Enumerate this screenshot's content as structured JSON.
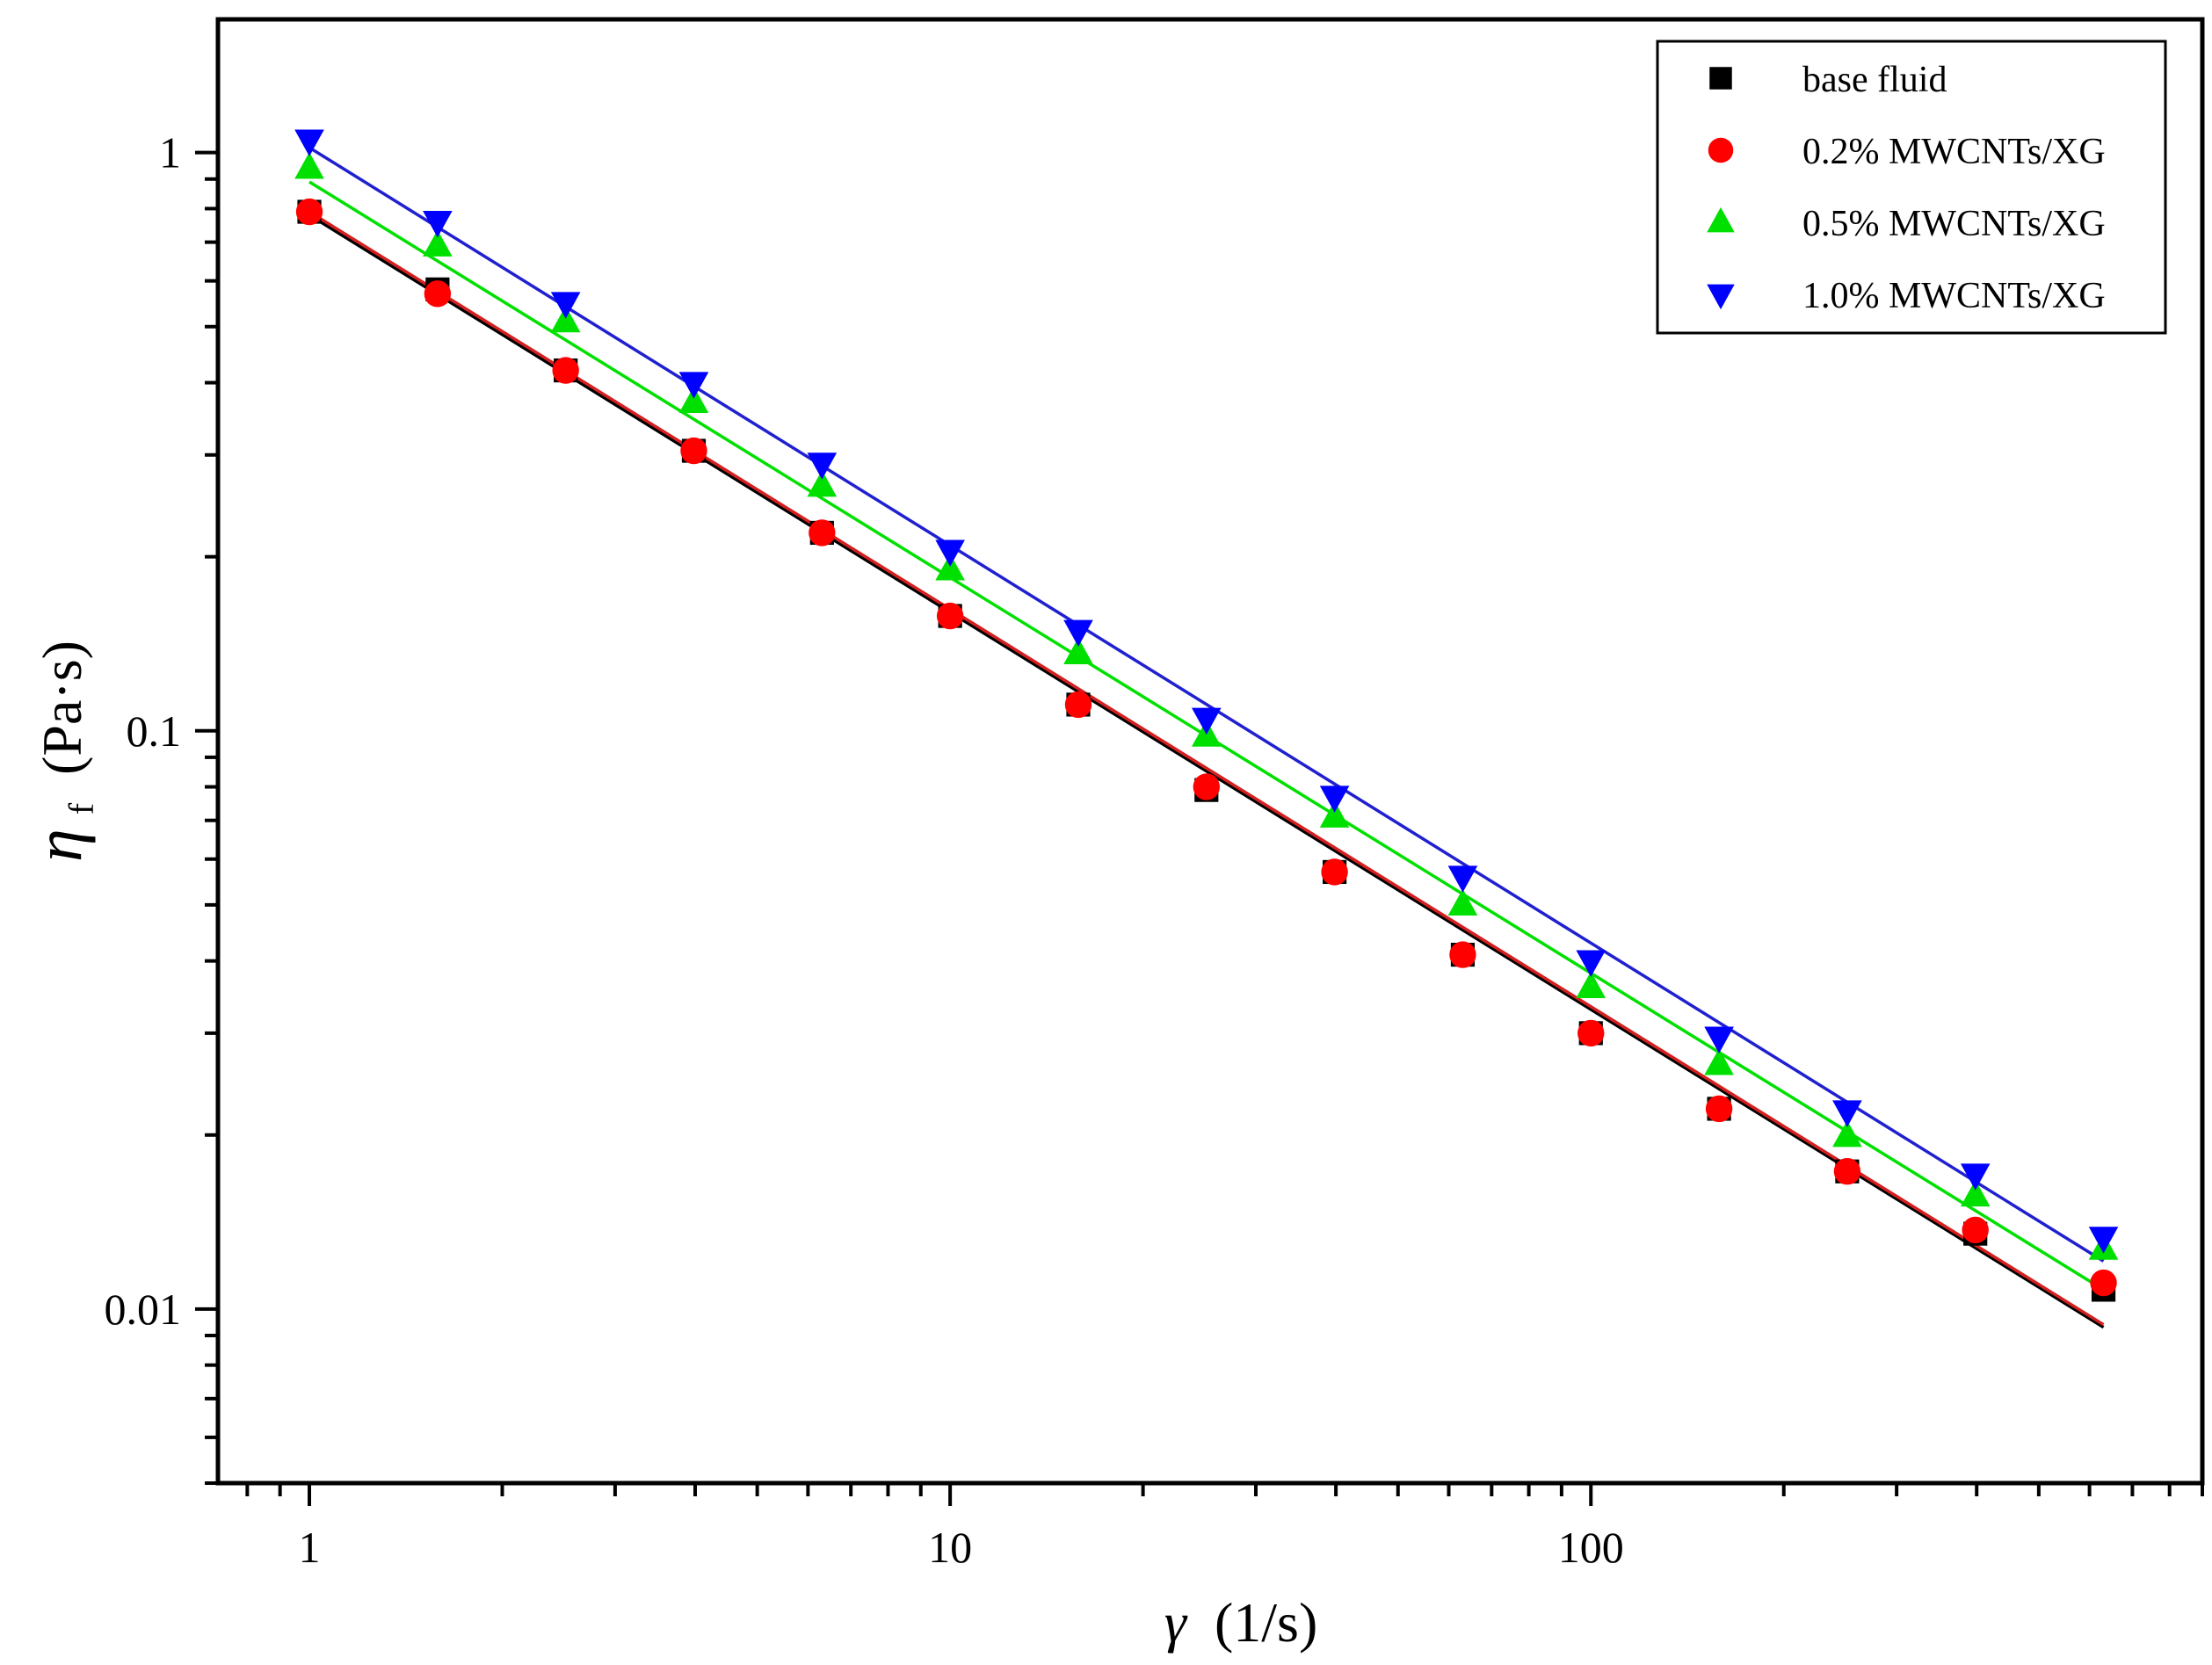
{
  "chart_data": {
    "type": "scatter",
    "x_scale": "log",
    "y_scale": "log",
    "xlabel": "γ (1/s)",
    "ylabel": "η (Pa·s)",
    "ylabel_symbol": "η",
    "ylabel_subscript": "f",
    "ylabel_unit": "(Pa·s)",
    "xlabel_symbol": "γ",
    "xlabel_unit": "(1/s)",
    "xlim": [
      0.72,
      900
    ],
    "ylim": [
      0.005,
      1.7
    ],
    "x_major_ticks": [
      1,
      10,
      100
    ],
    "x_tick_labels": [
      "1",
      "10",
      "100"
    ],
    "y_major_ticks": [
      0.01,
      0.1,
      1
    ],
    "y_tick_labels": [
      "0.01",
      "0.1",
      "1"
    ],
    "legend_position": "top-right",
    "x": [
      1,
      1.585,
      2.512,
      3.981,
      6.31,
      10,
      15.85,
      25.12,
      39.81,
      63.1,
      100,
      158.5,
      251.2,
      398.1,
      631
    ],
    "series": [
      {
        "name": "base fluid",
        "marker": "square",
        "color": "#000000",
        "values": [
          0.79,
          0.58,
          0.42,
          0.305,
          0.22,
          0.158,
          0.111,
          0.079,
          0.057,
          0.041,
          0.03,
          0.0222,
          0.0173,
          0.0135,
          0.0108
        ],
        "fit": {
          "color": "#000000",
          "y_start": 0.78,
          "y_end": 0.0093
        }
      },
      {
        "name": "0.2% MWCNTs/XG",
        "marker": "circle",
        "color": "#ff0000",
        "values": [
          0.79,
          0.57,
          0.42,
          0.305,
          0.22,
          0.158,
          0.111,
          0.08,
          0.057,
          0.041,
          0.03,
          0.0222,
          0.0173,
          0.0137,
          0.0111
        ],
        "fit": {
          "color": "#d42020",
          "y_start": 0.79,
          "y_end": 0.0094
        }
      },
      {
        "name": "0.5% MWCNTs/XG",
        "marker": "triangle-up",
        "color": "#00e000",
        "values": [
          0.94,
          0.69,
          0.51,
          0.37,
          0.265,
          0.19,
          0.136,
          0.098,
          0.071,
          0.05,
          0.036,
          0.0265,
          0.0199,
          0.0157,
          0.0127
        ],
        "fit": {
          "color": "#00e000",
          "y_start": 0.89,
          "y_end": 0.0108
        }
      },
      {
        "name": "1.0% MWCNTs/XG",
        "marker": "triangle-down",
        "color": "#0000ff",
        "values": [
          1.05,
          0.76,
          0.55,
          0.4,
          0.29,
          0.205,
          0.149,
          0.105,
          0.077,
          0.056,
          0.04,
          0.0295,
          0.022,
          0.0171,
          0.0133
        ],
        "fit": {
          "color": "#2020d0",
          "y_start": 1.02,
          "y_end": 0.0121
        }
      }
    ]
  }
}
